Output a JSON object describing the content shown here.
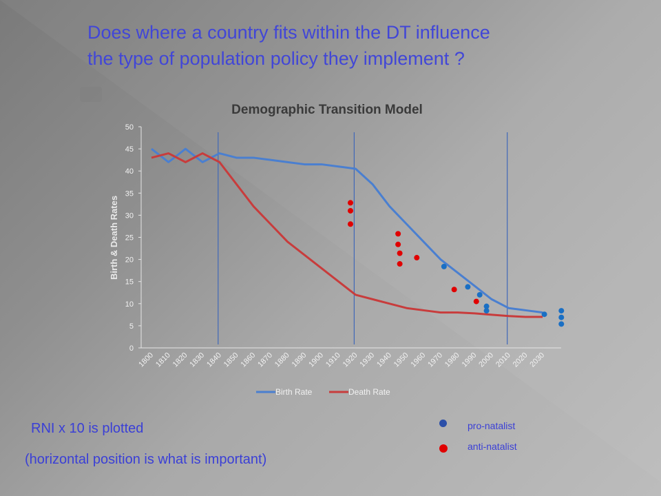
{
  "question": {
    "line1": "Does where a country fits within the DT influence",
    "line2": "the type of population policy they implement ?"
  },
  "notes": {
    "rni": "RNI x 10 is plotted",
    "horizontal": "(horizontal position is what is important)"
  },
  "policy_legend": {
    "pro": "pro-natalist",
    "anti": "anti-natalist",
    "pro_color": "#2b4fa8",
    "anti_color": "#e00000"
  },
  "chart_data": {
    "type": "line",
    "title": "Demographic Transition Model",
    "xlabel": "",
    "ylabel": "Birth & Death Rates",
    "ylim": [
      0,
      50
    ],
    "yticks": [
      0,
      5,
      10,
      15,
      20,
      25,
      30,
      35,
      40,
      45,
      50
    ],
    "categories": [
      "1800",
      "1810",
      "1820",
      "1830",
      "1840",
      "1850",
      "1860",
      "1870",
      "1880",
      "1890",
      "1900",
      "1910",
      "1920",
      "1930",
      "1940",
      "1950",
      "1960",
      "1970",
      "1980",
      "1990",
      "2000",
      "2010",
      "2020",
      "2030"
    ],
    "legend_position": "bottom",
    "grid": false,
    "series": [
      {
        "name": "Birth Rate",
        "color": "#4a7fd0",
        "values": [
          45,
          42,
          45,
          42,
          44,
          43,
          43,
          42.5,
          42,
          41.5,
          41.5,
          41,
          40.5,
          37,
          32,
          28,
          24,
          20,
          17,
          14,
          11,
          9,
          8.5,
          8
        ]
      },
      {
        "name": "Death Rate",
        "color": "#c83c3c",
        "values": [
          43,
          44,
          42,
          44,
          42,
          37,
          32,
          28,
          24,
          21,
          18,
          15,
          12,
          11,
          10,
          9,
          8.5,
          8,
          8,
          7.8,
          7.5,
          7.2,
          7,
          7
        ]
      }
    ],
    "stage_dividers": [
      "1840",
      "1920",
      "2010"
    ],
    "points": [
      {
        "x": 1917,
        "y": 32.8,
        "policy": "anti"
      },
      {
        "x": 1917,
        "y": 31,
        "policy": "anti"
      },
      {
        "x": 1917,
        "y": 28,
        "policy": "anti"
      },
      {
        "x": 1945,
        "y": 25.8,
        "policy": "anti"
      },
      {
        "x": 1945,
        "y": 23.4,
        "policy": "anti"
      },
      {
        "x": 1946,
        "y": 21.4,
        "policy": "anti"
      },
      {
        "x": 1946,
        "y": 19,
        "policy": "anti"
      },
      {
        "x": 1956,
        "y": 20.4,
        "policy": "anti"
      },
      {
        "x": 1978,
        "y": 13.2,
        "policy": "anti"
      },
      {
        "x": 1991,
        "y": 10.5,
        "policy": "anti"
      },
      {
        "x": 1972,
        "y": 18.4,
        "policy": "pro"
      },
      {
        "x": 1986,
        "y": 13.8,
        "policy": "pro"
      },
      {
        "x": 1993,
        "y": 12,
        "policy": "pro"
      },
      {
        "x": 1997,
        "y": 9.4,
        "policy": "pro"
      },
      {
        "x": 1997,
        "y": 8.4,
        "policy": "pro"
      },
      {
        "x": 2031,
        "y": 7.6,
        "policy": "pro"
      },
      {
        "x": 2041,
        "y": 8.4,
        "policy": "pro"
      },
      {
        "x": 2041,
        "y": 6.9,
        "policy": "pro"
      },
      {
        "x": 2041,
        "y": 5.4,
        "policy": "pro"
      }
    ]
  }
}
